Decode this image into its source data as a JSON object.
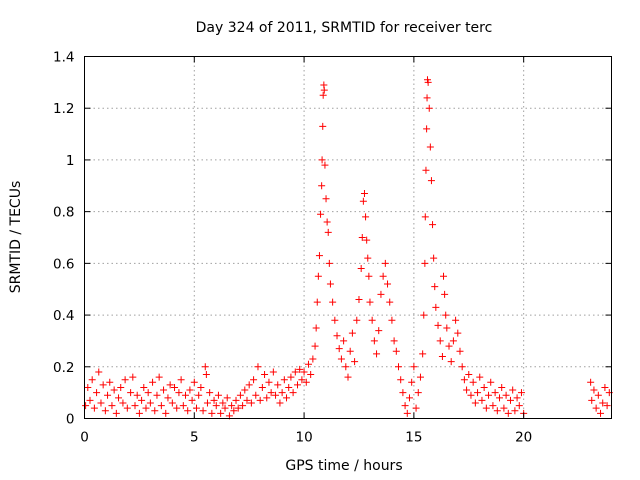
{
  "chart_data": {
    "type": "scatter",
    "title": "Day 324 of 2011, SRMTID for receiver terc",
    "xlabel": "GPS time / hours",
    "ylabel": "SRMTID / TECUs",
    "xlim": [
      0,
      24
    ],
    "ylim": [
      0,
      1.4
    ],
    "x_ticks": [
      0,
      5,
      10,
      15,
      20
    ],
    "x_tick_labels": [
      "0",
      "5",
      "10",
      "15",
      "20"
    ],
    "y_ticks": [
      0,
      0.2,
      0.4,
      0.6,
      0.8,
      1,
      1.2,
      1.4
    ],
    "y_tick_labels": [
      "0",
      "0.2",
      "0.4",
      "0.6",
      "0.8",
      "1",
      "1.2",
      "1.4"
    ],
    "grid": true,
    "marker": "+",
    "series": [
      {
        "name": "SRMTID",
        "color": "#ff0000",
        "points": [
          [
            0.05,
            0.05
          ],
          [
            0.15,
            0.12
          ],
          [
            0.25,
            0.07
          ],
          [
            0.35,
            0.15
          ],
          [
            0.45,
            0.04
          ],
          [
            0.55,
            0.1
          ],
          [
            0.65,
            0.18
          ],
          [
            0.75,
            0.06
          ],
          [
            0.85,
            0.13
          ],
          [
            0.95,
            0.03
          ],
          [
            1.05,
            0.09
          ],
          [
            1.15,
            0.14
          ],
          [
            1.25,
            0.05
          ],
          [
            1.35,
            0.11
          ],
          [
            1.45,
            0.02
          ],
          [
            1.55,
            0.08
          ],
          [
            1.65,
            0.12
          ],
          [
            1.75,
            0.06
          ],
          [
            1.85,
            0.15
          ],
          [
            1.95,
            0.04
          ],
          [
            2.1,
            0.1
          ],
          [
            2.2,
            0.16
          ],
          [
            2.3,
            0.05
          ],
          [
            2.4,
            0.09
          ],
          [
            2.5,
            0.02
          ],
          [
            2.6,
            0.07
          ],
          [
            2.7,
            0.12
          ],
          [
            2.8,
            0.04
          ],
          [
            2.9,
            0.1
          ],
          [
            3.0,
            0.06
          ],
          [
            3.1,
            0.14
          ],
          [
            3.2,
            0.03
          ],
          [
            3.3,
            0.09
          ],
          [
            3.4,
            0.16
          ],
          [
            3.5,
            0.05
          ],
          [
            3.6,
            0.11
          ],
          [
            3.7,
            0.02
          ],
          [
            3.8,
            0.08
          ],
          [
            3.9,
            0.13
          ],
          [
            4.0,
            0.06
          ],
          [
            4.1,
            0.12
          ],
          [
            4.2,
            0.04
          ],
          [
            4.3,
            0.1
          ],
          [
            4.4,
            0.15
          ],
          [
            4.5,
            0.05
          ],
          [
            4.6,
            0.09
          ],
          [
            4.7,
            0.03
          ],
          [
            4.8,
            0.11
          ],
          [
            4.9,
            0.07
          ],
          [
            5.0,
            0.14
          ],
          [
            5.1,
            0.04
          ],
          [
            5.2,
            0.09
          ],
          [
            5.3,
            0.12
          ],
          [
            5.4,
            0.03
          ],
          [
            5.5,
            0.2
          ],
          [
            5.55,
            0.17
          ],
          [
            5.6,
            0.06
          ],
          [
            5.7,
            0.1
          ],
          [
            5.8,
            0.02
          ],
          [
            5.9,
            0.07
          ],
          [
            6.0,
            0.05
          ],
          [
            6.1,
            0.09
          ],
          [
            6.2,
            0.02
          ],
          [
            6.3,
            0.06
          ],
          [
            6.4,
            0.04
          ],
          [
            6.5,
            0.08
          ],
          [
            6.6,
            0.01
          ],
          [
            6.7,
            0.05
          ],
          [
            6.8,
            0.03
          ],
          [
            6.9,
            0.07
          ],
          [
            7.0,
            0.04
          ],
          [
            7.1,
            0.09
          ],
          [
            7.2,
            0.05
          ],
          [
            7.3,
            0.11
          ],
          [
            7.4,
            0.07
          ],
          [
            7.5,
            0.13
          ],
          [
            7.6,
            0.06
          ],
          [
            7.7,
            0.15
          ],
          [
            7.8,
            0.09
          ],
          [
            7.9,
            0.2
          ],
          [
            8.0,
            0.07
          ],
          [
            8.1,
            0.12
          ],
          [
            8.2,
            0.17
          ],
          [
            8.3,
            0.08
          ],
          [
            8.4,
            0.14
          ],
          [
            8.5,
            0.1
          ],
          [
            8.6,
            0.18
          ],
          [
            8.7,
            0.09
          ],
          [
            8.8,
            0.13
          ],
          [
            8.9,
            0.06
          ],
          [
            9.0,
            0.1
          ],
          [
            9.1,
            0.15
          ],
          [
            9.2,
            0.08
          ],
          [
            9.3,
            0.12
          ],
          [
            9.4,
            0.16
          ],
          [
            9.5,
            0.1
          ],
          [
            9.6,
            0.18
          ],
          [
            9.7,
            0.13
          ],
          [
            9.8,
            0.19
          ],
          [
            9.9,
            0.15
          ],
          [
            10.0,
            0.18
          ],
          [
            10.1,
            0.14
          ],
          [
            10.2,
            0.21
          ],
          [
            10.3,
            0.17
          ],
          [
            10.4,
            0.23
          ],
          [
            10.5,
            0.28
          ],
          [
            10.55,
            0.35
          ],
          [
            10.6,
            0.45
          ],
          [
            10.65,
            0.55
          ],
          [
            10.7,
            0.63
          ],
          [
            10.75,
            0.79
          ],
          [
            10.8,
            0.9
          ],
          [
            10.82,
            1.0
          ],
          [
            10.85,
            1.13
          ],
          [
            10.87,
            1.25
          ],
          [
            10.9,
            1.29
          ],
          [
            10.92,
            1.27
          ],
          [
            10.95,
            0.98
          ],
          [
            11.0,
            0.85
          ],
          [
            11.05,
            0.76
          ],
          [
            11.1,
            0.72
          ],
          [
            11.15,
            0.6
          ],
          [
            11.2,
            0.52
          ],
          [
            11.3,
            0.45
          ],
          [
            11.4,
            0.38
          ],
          [
            11.5,
            0.32
          ],
          [
            11.6,
            0.27
          ],
          [
            11.7,
            0.23
          ],
          [
            11.8,
            0.3
          ],
          [
            11.9,
            0.2
          ],
          [
            12.0,
            0.16
          ],
          [
            12.1,
            0.26
          ],
          [
            12.2,
            0.33
          ],
          [
            12.3,
            0.22
          ],
          [
            12.4,
            0.38
          ],
          [
            12.5,
            0.46
          ],
          [
            12.6,
            0.58
          ],
          [
            12.65,
            0.7
          ],
          [
            12.7,
            0.84
          ],
          [
            12.75,
            0.87
          ],
          [
            12.8,
            0.78
          ],
          [
            12.85,
            0.69
          ],
          [
            12.9,
            0.62
          ],
          [
            12.95,
            0.55
          ],
          [
            13.0,
            0.45
          ],
          [
            13.1,
            0.38
          ],
          [
            13.2,
            0.3
          ],
          [
            13.3,
            0.25
          ],
          [
            13.4,
            0.34
          ],
          [
            13.5,
            0.48
          ],
          [
            13.6,
            0.55
          ],
          [
            13.7,
            0.6
          ],
          [
            13.8,
            0.52
          ],
          [
            13.9,
            0.45
          ],
          [
            14.0,
            0.38
          ],
          [
            14.1,
            0.3
          ],
          [
            14.2,
            0.26
          ],
          [
            14.3,
            0.2
          ],
          [
            14.4,
            0.15
          ],
          [
            14.5,
            0.1
          ],
          [
            14.6,
            0.05
          ],
          [
            14.7,
            0.02
          ],
          [
            14.8,
            0.08
          ],
          [
            14.9,
            0.14
          ],
          [
            15.0,
            0.2
          ],
          [
            15.1,
            0.04
          ],
          [
            15.2,
            0.1
          ],
          [
            15.3,
            0.16
          ],
          [
            15.4,
            0.25
          ],
          [
            15.45,
            0.4
          ],
          [
            15.5,
            0.6
          ],
          [
            15.52,
            0.78
          ],
          [
            15.55,
            0.96
          ],
          [
            15.58,
            1.12
          ],
          [
            15.6,
            1.24
          ],
          [
            15.62,
            1.31
          ],
          [
            15.65,
            1.3
          ],
          [
            15.7,
            1.2
          ],
          [
            15.75,
            1.05
          ],
          [
            15.8,
            0.92
          ],
          [
            15.85,
            0.75
          ],
          [
            15.9,
            0.62
          ],
          [
            15.95,
            0.51
          ],
          [
            16.0,
            0.43
          ],
          [
            16.1,
            0.36
          ],
          [
            16.2,
            0.3
          ],
          [
            16.3,
            0.24
          ],
          [
            16.35,
            0.55
          ],
          [
            16.4,
            0.48
          ],
          [
            16.45,
            0.4
          ],
          [
            16.5,
            0.35
          ],
          [
            16.6,
            0.28
          ],
          [
            16.7,
            0.22
          ],
          [
            16.8,
            0.3
          ],
          [
            16.9,
            0.38
          ],
          [
            17.0,
            0.33
          ],
          [
            17.1,
            0.26
          ],
          [
            17.2,
            0.2
          ],
          [
            17.3,
            0.15
          ],
          [
            17.4,
            0.11
          ],
          [
            17.5,
            0.17
          ],
          [
            17.6,
            0.09
          ],
          [
            17.7,
            0.14
          ],
          [
            17.8,
            0.06
          ],
          [
            17.9,
            0.1
          ],
          [
            18.0,
            0.16
          ],
          [
            18.1,
            0.07
          ],
          [
            18.2,
            0.12
          ],
          [
            18.3,
            0.04
          ],
          [
            18.4,
            0.09
          ],
          [
            18.5,
            0.14
          ],
          [
            18.6,
            0.05
          ],
          [
            18.7,
            0.1
          ],
          [
            18.8,
            0.03
          ],
          [
            18.9,
            0.08
          ],
          [
            19.0,
            0.12
          ],
          [
            19.1,
            0.04
          ],
          [
            19.2,
            0.09
          ],
          [
            19.3,
            0.02
          ],
          [
            19.4,
            0.07
          ],
          [
            19.5,
            0.11
          ],
          [
            19.6,
            0.03
          ],
          [
            19.7,
            0.08
          ],
          [
            19.8,
            0.05
          ],
          [
            19.9,
            0.1
          ],
          [
            20.0,
            0.02
          ],
          [
            23.05,
            0.14
          ],
          [
            23.1,
            0.07
          ],
          [
            23.2,
            0.11
          ],
          [
            23.3,
            0.04
          ],
          [
            23.4,
            0.09
          ],
          [
            23.5,
            0.02
          ],
          [
            23.6,
            0.06
          ],
          [
            23.7,
            0.12
          ],
          [
            23.8,
            0.05
          ],
          [
            23.9,
            0.1
          ]
        ]
      }
    ]
  }
}
